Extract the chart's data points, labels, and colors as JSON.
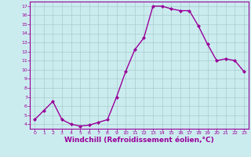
{
  "x": [
    0,
    1,
    2,
    3,
    4,
    5,
    6,
    7,
    8,
    9,
    10,
    11,
    12,
    13,
    14,
    15,
    16,
    17,
    18,
    19,
    20,
    21,
    22,
    23
  ],
  "y": [
    4.5,
    5.5,
    6.5,
    4.5,
    4.0,
    3.8,
    3.9,
    4.2,
    4.5,
    7.0,
    9.8,
    12.2,
    13.5,
    17.0,
    17.0,
    16.7,
    16.5,
    16.5,
    14.8,
    12.8,
    11.0,
    11.2,
    11.0,
    9.8
  ],
  "line_color": "#990099",
  "marker": "D",
  "marker_size": 2,
  "line_width": 1.0,
  "xlabel": "Windchill (Refroidissement éolien,°C)",
  "xlabel_fontsize": 6.5,
  "ylim": [
    3.5,
    17.5
  ],
  "xlim": [
    -0.5,
    23.5
  ],
  "xtick_labels": [
    "0",
    "1",
    "2",
    "3",
    "4",
    "5",
    "6",
    "7",
    "8",
    "9",
    "10",
    "11",
    "12",
    "13",
    "14",
    "15",
    "16",
    "17",
    "18",
    "19",
    "20",
    "21",
    "22",
    "23"
  ],
  "bg_color": "#cbecef",
  "grid_color": "#aacccc",
  "tick_color": "#990099",
  "axis_label_color": "#990099",
  "border_color": "#990099"
}
